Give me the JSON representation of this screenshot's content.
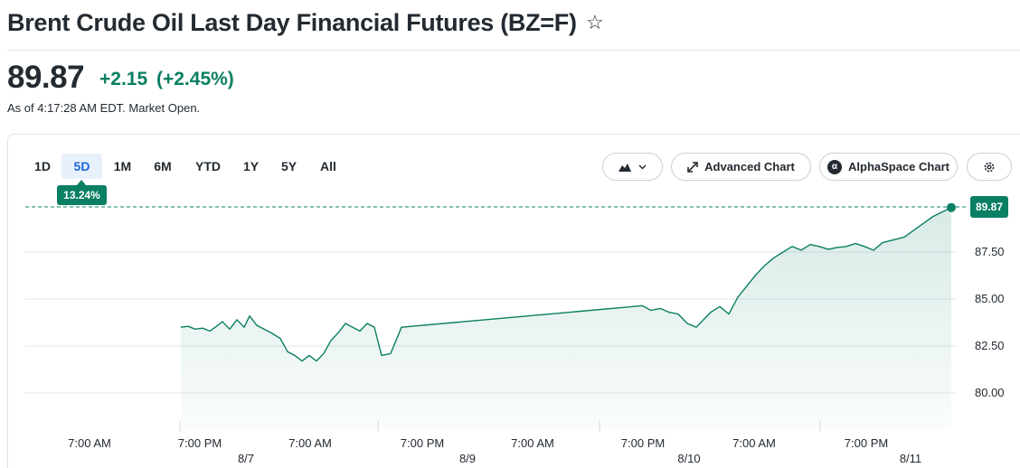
{
  "header": {
    "title": "Brent Crude Oil Last Day Financial Futures (BZ=F)",
    "watchlist_icon": "star-outline-icon"
  },
  "quote": {
    "price": "89.87",
    "change": "+2.15",
    "change_percent": "(+2.45%)",
    "as_of": "As of 4:17:28 AM EDT. Market Open.",
    "positive_color": "#0a7f63"
  },
  "range_tabs": {
    "items": [
      {
        "label": "1D"
      },
      {
        "label": "5D"
      },
      {
        "label": "1M"
      },
      {
        "label": "6M"
      },
      {
        "label": "YTD"
      },
      {
        "label": "1Y"
      },
      {
        "label": "5Y"
      },
      {
        "label": "All"
      }
    ],
    "selected": "5D",
    "selected_badge": "13.24%"
  },
  "toolbar": {
    "chart_type_icon": "mountain-chart-icon",
    "advanced_chart_label": "Advanced Chart",
    "advanced_chart_icon": "expand-arrows-icon",
    "alphaspace_label": "AlphaSpace Chart",
    "alphaspace_icon": "alphaspace-logo-icon",
    "settings_icon": "gear-icon"
  },
  "chart_data": {
    "type": "area",
    "current_price_label": "89.87",
    "y_ticks": [
      "87.50",
      "85.00",
      "82.50",
      "80.00"
    ],
    "ylim": [
      79.0,
      90.5
    ],
    "x_time_labels": [
      "7:00 AM",
      "7:00 PM",
      "7:00 AM",
      "7:00 PM",
      "7:00 AM",
      "7:00 PM",
      "7:00 AM",
      "7:00 PM"
    ],
    "x_date_labels": [
      "8/7",
      "8/9",
      "8/10",
      "8/11"
    ],
    "line_color": "#0a7f63",
    "series": [
      {
        "values": [
          83.5,
          83.55,
          83.4,
          83.45,
          83.3,
          83.5,
          83.8,
          83.4,
          83.9,
          83.5,
          84.1,
          83.6,
          83.4,
          83.2,
          82.9,
          82.2,
          82.0,
          81.7,
          82.0,
          81.7,
          82.1,
          82.8,
          83.2,
          83.7,
          83.5,
          83.3,
          83.7,
          83.5,
          82.0,
          82.1,
          83.5,
          84.6,
          84.65,
          84.4,
          84.5,
          84.3,
          84.2,
          83.7,
          83.5,
          83.9,
          84.3,
          84.6,
          84.2,
          85.1,
          85.7,
          86.3,
          86.8,
          87.2,
          87.5,
          87.8,
          87.6,
          87.9,
          87.8,
          87.65,
          87.75,
          87.8,
          87.95,
          87.8,
          87.6,
          88.0,
          88.3,
          89.4,
          89.87
        ]
      }
    ]
  }
}
